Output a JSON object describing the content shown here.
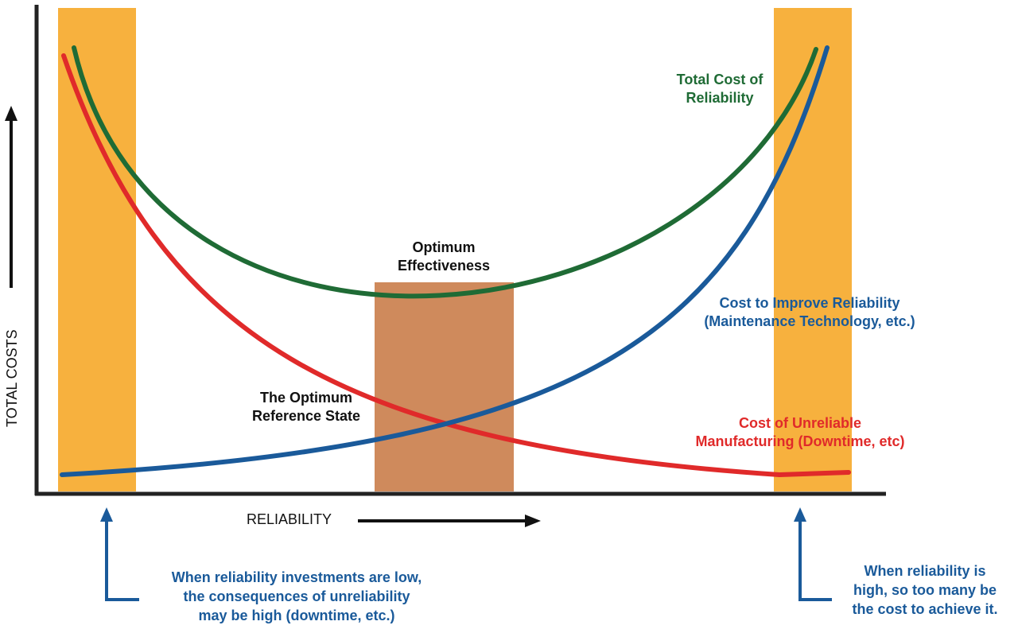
{
  "axes": {
    "y_label": "TOTAL COSTS",
    "x_label": "RELIABILITY"
  },
  "labels": {
    "optimum_effectiveness": [
      "Optimum",
      "Effectiveness"
    ],
    "optimum_reference": [
      "The Optimum",
      "Reference State"
    ],
    "total_cost": [
      "Total Cost of",
      "Reliability"
    ],
    "cost_improve": [
      "Cost to Improve Reliability",
      "(Maintenance Technology, etc.)"
    ],
    "cost_unreliable": [
      "Cost of Unreliable",
      "Manufacturing (Downtime, etc)"
    ],
    "low_note": [
      "When reliability investments are low,",
      "the consequences of unreliability",
      "may be high (downtime, etc.)"
    ],
    "high_note": [
      "When reliability is",
      "high, so too many be",
      "the cost to achieve it."
    ]
  },
  "colors": {
    "total_cost": "#1f6b35",
    "cost_improve": "#1a5a9a",
    "cost_unreliable": "#e02a2a",
    "extreme_band": "#f7b13e",
    "optimum_band": "#cf8a5c",
    "note_text": "#1a5a9a",
    "axis": "#222222"
  }
}
